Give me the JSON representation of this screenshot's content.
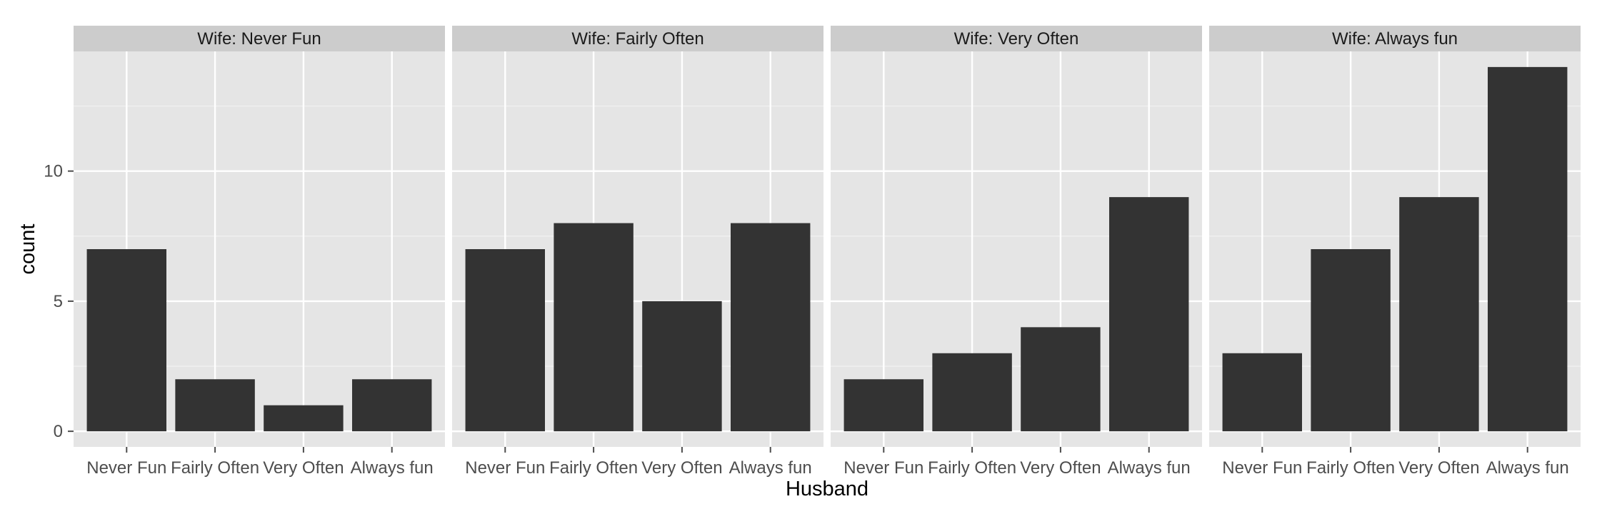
{
  "chart_data": {
    "type": "bar",
    "facet_prefix": "Wife: ",
    "xlabel": "Husband",
    "ylabel": "count",
    "categories": [
      "Never Fun",
      "Fairly Often",
      "Very Often",
      "Always fun"
    ],
    "ylim": [
      -0.6,
      14.6
    ],
    "yticks": [
      0,
      5,
      10
    ],
    "panels": [
      {
        "name": "Never Fun",
        "label": "Wife: Never Fun",
        "values": [
          7,
          2,
          1,
          2
        ]
      },
      {
        "name": "Fairly Often",
        "label": "Wife: Fairly Often",
        "values": [
          7,
          8,
          5,
          8
        ]
      },
      {
        "name": "Very Often",
        "label": "Wife: Very Often",
        "values": [
          2,
          3,
          4,
          9
        ]
      },
      {
        "name": "Always fun",
        "label": "Wife: Always fun",
        "values": [
          3,
          7,
          9,
          14
        ]
      }
    ],
    "grid": true,
    "legend": "none"
  },
  "colors": {
    "panel_bg": "#e5e5e5",
    "strip_bg": "#cccccc",
    "grid_major": "#ffffff",
    "grid_minor": "#f2f2f2",
    "bar_fill": "#333333",
    "tick_color": "#4d4d4d"
  }
}
